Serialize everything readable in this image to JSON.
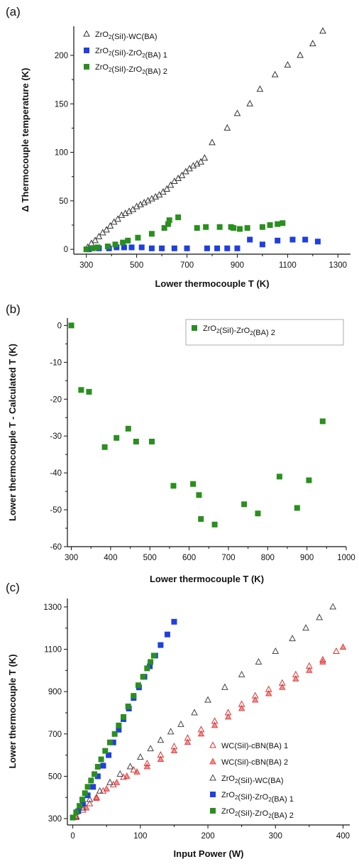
{
  "chart_data": [
    {
      "panel": "(a)",
      "type": "scatter",
      "xlabel": "Lower thermocouple T (K)",
      "ylabel": "Δ Thermocouple temperature (K)",
      "xlim": [
        250,
        1350
      ],
      "ylim": [
        -5,
        230
      ],
      "xticks": [
        300,
        500,
        700,
        900,
        1100,
        1300
      ],
      "yticks": [
        0,
        50,
        100,
        150,
        200
      ],
      "legend_position": "top-left",
      "series": [
        {
          "name": "ZrO2(SiI)-WC(BA)",
          "marker": "open-triangle",
          "color": "#333333",
          "x": [
            305,
            320,
            335,
            350,
            365,
            380,
            395,
            410,
            425,
            440,
            455,
            470,
            485,
            500,
            515,
            530,
            545,
            560,
            575,
            590,
            605,
            620,
            635,
            650,
            665,
            680,
            695,
            710,
            725,
            740,
            755,
            770,
            800,
            860,
            900,
            950,
            990,
            1050,
            1100,
            1150,
            1200,
            1240
          ],
          "y": [
            2,
            6,
            9,
            13,
            17,
            20,
            24,
            28,
            31,
            35,
            37,
            39,
            41,
            44,
            46,
            48,
            50,
            52,
            54,
            56,
            59,
            62,
            66,
            70,
            73,
            76,
            80,
            83,
            86,
            88,
            90,
            94,
            110,
            125,
            140,
            150,
            165,
            180,
            190,
            200,
            212,
            225
          ]
        },
        {
          "name": "ZrO2(SiI)-ZrO2(BA) 1",
          "marker": "filled-square",
          "color": "#1f3fe0",
          "x": [
            310,
            350,
            390,
            420,
            450,
            480,
            520,
            560,
            600,
            650,
            700,
            780,
            820,
            860,
            900,
            950,
            1000,
            1060,
            1120,
            1170,
            1220
          ],
          "y": [
            0,
            1,
            1,
            2,
            2,
            2,
            2,
            1,
            1,
            1,
            1,
            1,
            1,
            1,
            1,
            10,
            5,
            9,
            10,
            10,
            8
          ]
        },
        {
          "name": "ZrO2(SiI)-ZrO2(BA) 2",
          "marker": "filled-square",
          "color": "#2a8f1e",
          "x": [
            300,
            325,
            345,
            385,
            415,
            445,
            465,
            505,
            560,
            610,
            625,
            630,
            665,
            740,
            775,
            830,
            875,
            885,
            910,
            940,
            1000,
            1030,
            1060,
            1080
          ],
          "y": [
            0,
            1,
            2,
            3,
            5,
            7,
            9,
            12,
            16,
            22,
            26,
            30,
            33,
            22,
            23,
            23,
            23,
            22,
            21,
            22,
            23,
            25,
            26,
            27
          ]
        }
      ]
    },
    {
      "panel": "(b)",
      "type": "scatter",
      "xlabel": "Lower thermocouple T (K)",
      "ylabel": "Lower thermocouple T - Calculated T (K)",
      "xlim": [
        290,
        1000
      ],
      "ylim": [
        -60,
        2
      ],
      "xticks": [
        300,
        400,
        500,
        600,
        700,
        800,
        900,
        1000
      ],
      "yticks": [
        0,
        -10,
        -20,
        -30,
        -40,
        -50,
        -60
      ],
      "legend_position": "top-right",
      "series": [
        {
          "name": "ZrO2(SiI)-ZrO2(BA) 2",
          "marker": "filled-square",
          "color": "#2a8f1e",
          "x": [
            300,
            325,
            345,
            385,
            415,
            445,
            465,
            505,
            560,
            610,
            625,
            630,
            665,
            740,
            775,
            830,
            875,
            905,
            940
          ],
          "y": [
            0,
            -17.5,
            -18,
            -33,
            -30.5,
            -28,
            -31.5,
            -31.5,
            -43.5,
            -43,
            -46,
            -52.5,
            -54,
            -48.5,
            -51,
            -41,
            -49.5,
            -42,
            -26
          ]
        }
      ]
    },
    {
      "panel": "(c)",
      "type": "scatter",
      "xlabel": "Input Power (W)",
      "ylabel": "Lower thermocouple T (K)",
      "xlim": [
        -8,
        410
      ],
      "ylim": [
        270,
        1340
      ],
      "xticks": [
        0,
        100,
        200,
        300,
        400
      ],
      "yticks": [
        300,
        500,
        700,
        900,
        1100,
        1300
      ],
      "legend_position": "bottom-right",
      "series": [
        {
          "name": "WC(SiI)-cBN(BA) 1",
          "marker": "open-triangle",
          "color": "#e03030",
          "x": [
            5,
            15,
            25,
            35,
            45,
            60,
            75,
            90,
            110,
            130,
            150,
            170,
            190,
            210,
            230,
            250,
            270,
            290,
            310,
            330,
            350,
            370,
            390
          ],
          "y": [
            310,
            340,
            370,
            400,
            430,
            460,
            495,
            530,
            560,
            600,
            640,
            680,
            720,
            760,
            800,
            840,
            880,
            910,
            940,
            980,
            1020,
            1050,
            1090
          ]
        },
        {
          "name": "WC(SiI)-cBN(BA) 2",
          "marker": "filled-triangle",
          "color": "#e03030",
          "x": [
            5,
            20,
            35,
            50,
            65,
            80,
            95,
            110,
            130,
            150,
            170,
            190,
            210,
            230,
            250,
            270,
            290,
            310,
            330,
            350,
            370,
            400
          ],
          "y": [
            305,
            350,
            395,
            440,
            470,
            500,
            520,
            545,
            580,
            620,
            660,
            700,
            740,
            780,
            820,
            860,
            890,
            920,
            960,
            1000,
            1040,
            1110
          ]
        },
        {
          "name": "ZrO2(SiI)-WC(BA)",
          "marker": "open-triangle",
          "color": "#444444",
          "x": [
            5,
            15,
            25,
            40,
            55,
            70,
            85,
            100,
            115,
            130,
            145,
            160,
            180,
            200,
            225,
            250,
            275,
            300,
            325,
            345,
            365,
            385
          ],
          "y": [
            310,
            350,
            390,
            430,
            470,
            510,
            545,
            590,
            630,
            670,
            710,
            745,
            800,
            860,
            920,
            980,
            1040,
            1090,
            1150,
            1200,
            1250,
            1300
          ]
        },
        {
          "name": "ZrO2(SiI)-ZrO2(BA) 1",
          "marker": "filled-square",
          "color": "#1f3fe0",
          "x": [
            0,
            8,
            15,
            22,
            30,
            37,
            45,
            53,
            60,
            68,
            75,
            83,
            90,
            98,
            106,
            114,
            122,
            130,
            140,
            150
          ],
          "y": [
            305,
            335,
            370,
            410,
            450,
            500,
            550,
            600,
            660,
            720,
            770,
            820,
            870,
            920,
            970,
            1020,
            1070,
            1120,
            1170,
            1230
          ]
        },
        {
          "name": "ZrO2(SiI)-ZrO2(BA) 2",
          "marker": "filled-square",
          "color": "#2a8f1e",
          "x": [
            0,
            5,
            10,
            14,
            18,
            22,
            27,
            32,
            37,
            42,
            48,
            55,
            62,
            68,
            75,
            82,
            90,
            97,
            104,
            110,
            115,
            120
          ],
          "y": [
            305,
            330,
            360,
            390,
            420,
            450,
            480,
            510,
            545,
            580,
            620,
            660,
            700,
            740,
            780,
            830,
            880,
            930,
            970,
            1010,
            1040,
            1070
          ]
        }
      ]
    }
  ]
}
